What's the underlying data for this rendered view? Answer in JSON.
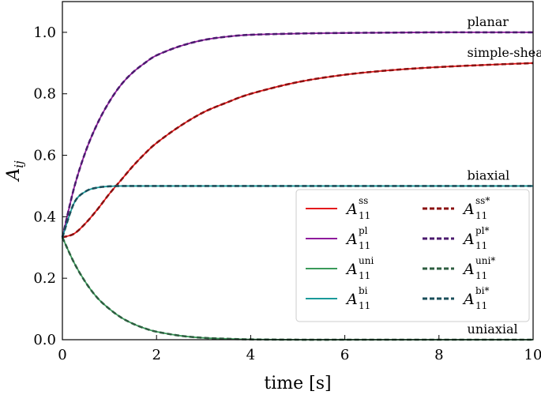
{
  "chart_data": {
    "type": "line",
    "xlabel": "time [s]",
    "ylabel": "A_ij",
    "ylabel_main": "A",
    "ylabel_sub": "ij",
    "xlim": [
      0,
      10
    ],
    "ylim": [
      0,
      1.1
    ],
    "xticks": [
      0,
      2,
      4,
      6,
      8,
      10
    ],
    "xtick_labels": [
      "0",
      "2",
      "4",
      "6",
      "8",
      "10"
    ],
    "yticks": [
      0.0,
      0.2,
      0.4,
      0.6,
      0.8,
      1.0
    ],
    "ytick_labels": [
      "0.0",
      "0.2",
      "0.4",
      "0.6",
      "0.8",
      "1.0"
    ],
    "grid": false,
    "legend_placement": "center-right",
    "x": [
      0,
      0.25,
      0.5,
      0.75,
      1,
      1.25,
      1.5,
      1.75,
      2,
      2.5,
      3,
      3.5,
      4,
      5,
      6,
      7,
      8,
      9,
      10
    ],
    "series": [
      {
        "key": "ss",
        "label_main": "A",
        "label_sub": "11",
        "label_sup": "ss",
        "color": "#e41a1c",
        "style": "solid",
        "values": [
          0.333,
          0.345,
          0.38,
          0.425,
          0.475,
          0.52,
          0.565,
          0.605,
          0.64,
          0.695,
          0.74,
          0.772,
          0.8,
          0.838,
          0.862,
          0.877,
          0.887,
          0.894,
          0.9
        ]
      },
      {
        "key": "pl",
        "label_main": "A",
        "label_sub": "11",
        "label_sup": "pl",
        "color": "#8e1b9c",
        "style": "solid",
        "values": [
          0.333,
          0.495,
          0.615,
          0.705,
          0.775,
          0.83,
          0.87,
          0.9,
          0.925,
          0.955,
          0.975,
          0.986,
          0.992,
          0.996,
          0.998,
          0.999,
          1.0,
          1.0,
          1.0
        ]
      },
      {
        "key": "uni",
        "label_main": "A",
        "label_sub": "11",
        "label_sup": "uni",
        "color": "#3a9a5a",
        "style": "solid",
        "values": [
          0.333,
          0.25,
          0.185,
          0.135,
          0.1,
          0.072,
          0.052,
          0.037,
          0.026,
          0.013,
          0.006,
          0.003,
          0.001,
          0.0,
          0.0,
          0.0,
          0.0,
          0.0,
          0.0
        ]
      },
      {
        "key": "bi",
        "label_main": "A",
        "label_sub": "11",
        "label_sup": "bi",
        "color": "#1a9a9a",
        "style": "solid",
        "values": [
          0.333,
          0.445,
          0.483,
          0.495,
          0.499,
          0.5,
          0.5,
          0.5,
          0.5,
          0.5,
          0.5,
          0.5,
          0.5,
          0.5,
          0.5,
          0.5,
          0.5,
          0.5,
          0.5
        ]
      },
      {
        "key": "ss_star",
        "label_main": "A",
        "label_sub": "11",
        "label_sup": "ss*",
        "color": "#8b1010",
        "style": "dashed",
        "values": [
          0.333,
          0.345,
          0.38,
          0.425,
          0.475,
          0.52,
          0.565,
          0.605,
          0.64,
          0.695,
          0.74,
          0.772,
          0.8,
          0.838,
          0.862,
          0.877,
          0.887,
          0.894,
          0.9
        ]
      },
      {
        "key": "pl_star",
        "label_main": "A",
        "label_sub": "11",
        "label_sup": "pl*",
        "color": "#4b1a6e",
        "style": "dashed",
        "values": [
          0.333,
          0.495,
          0.615,
          0.705,
          0.775,
          0.83,
          0.87,
          0.9,
          0.925,
          0.955,
          0.975,
          0.986,
          0.992,
          0.996,
          0.998,
          0.999,
          1.0,
          1.0,
          1.0
        ]
      },
      {
        "key": "uni_star",
        "label_main": "A",
        "label_sub": "11",
        "label_sup": "uni*",
        "color": "#2d5e40",
        "style": "dashed",
        "values": [
          0.333,
          0.25,
          0.185,
          0.135,
          0.1,
          0.072,
          0.052,
          0.037,
          0.026,
          0.013,
          0.006,
          0.003,
          0.001,
          0.0,
          0.0,
          0.0,
          0.0,
          0.0,
          0.0
        ]
      },
      {
        "key": "bi_star",
        "label_main": "A",
        "label_sub": "11",
        "label_sup": "bi*",
        "color": "#1a4e5a",
        "style": "dashed",
        "values": [
          0.333,
          0.445,
          0.483,
          0.495,
          0.499,
          0.5,
          0.5,
          0.5,
          0.5,
          0.5,
          0.5,
          0.5,
          0.5,
          0.5,
          0.5,
          0.5,
          0.5,
          0.5,
          0.5
        ]
      }
    ],
    "annotations": [
      {
        "text": "planar",
        "x": 8.6,
        "y": 1.015
      },
      {
        "text": "simple-shear",
        "x": 8.6,
        "y": 0.915
      },
      {
        "text": "biaxial",
        "x": 8.6,
        "y": 0.515
      },
      {
        "text": "uniaxial",
        "x": 8.6,
        "y": 0.015
      }
    ],
    "legend_order": [
      "ss",
      "ss_star",
      "pl",
      "pl_star",
      "uni",
      "uni_star",
      "bi",
      "bi_star"
    ]
  }
}
